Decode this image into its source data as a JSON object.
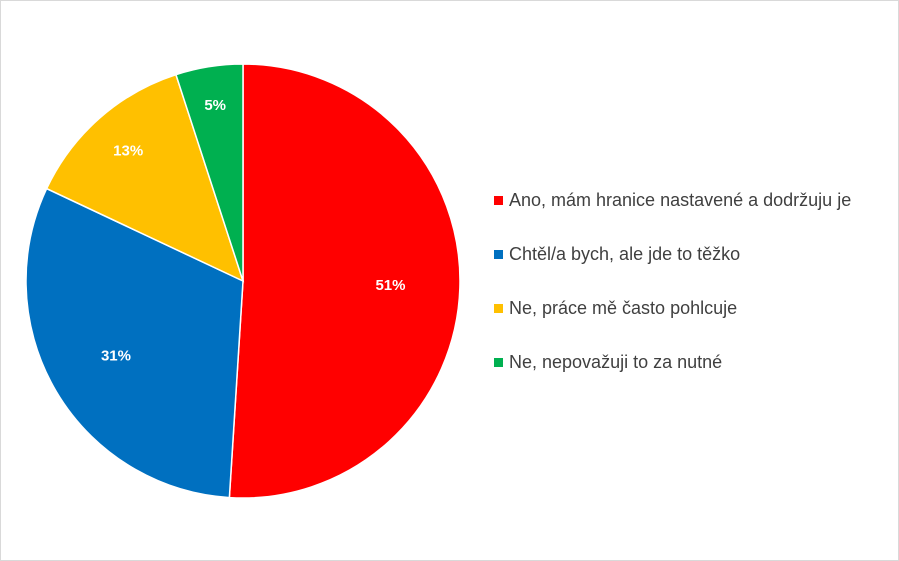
{
  "chart_data": {
    "type": "pie",
    "title": "",
    "slices": [
      {
        "name": "Ano, mám hranice nastavené a dodržuju je",
        "value": 51,
        "label": "51%",
        "color": "#ff0000"
      },
      {
        "name": "Chtěl/a bych, ale jde to těžko",
        "value": 31,
        "label": "31%",
        "color": "#0070c0"
      },
      {
        "name": "Ne, práce mě často pohlcuje",
        "value": 13,
        "label": "13%",
        "color": "#ffc000"
      },
      {
        "name": "Ne, nepovažuji to za nutné",
        "value": 5,
        "label": "5%",
        "color": "#00b050"
      }
    ],
    "legend_position": "right",
    "start_angle": "12 o'clock",
    "direction": "clockwise"
  }
}
